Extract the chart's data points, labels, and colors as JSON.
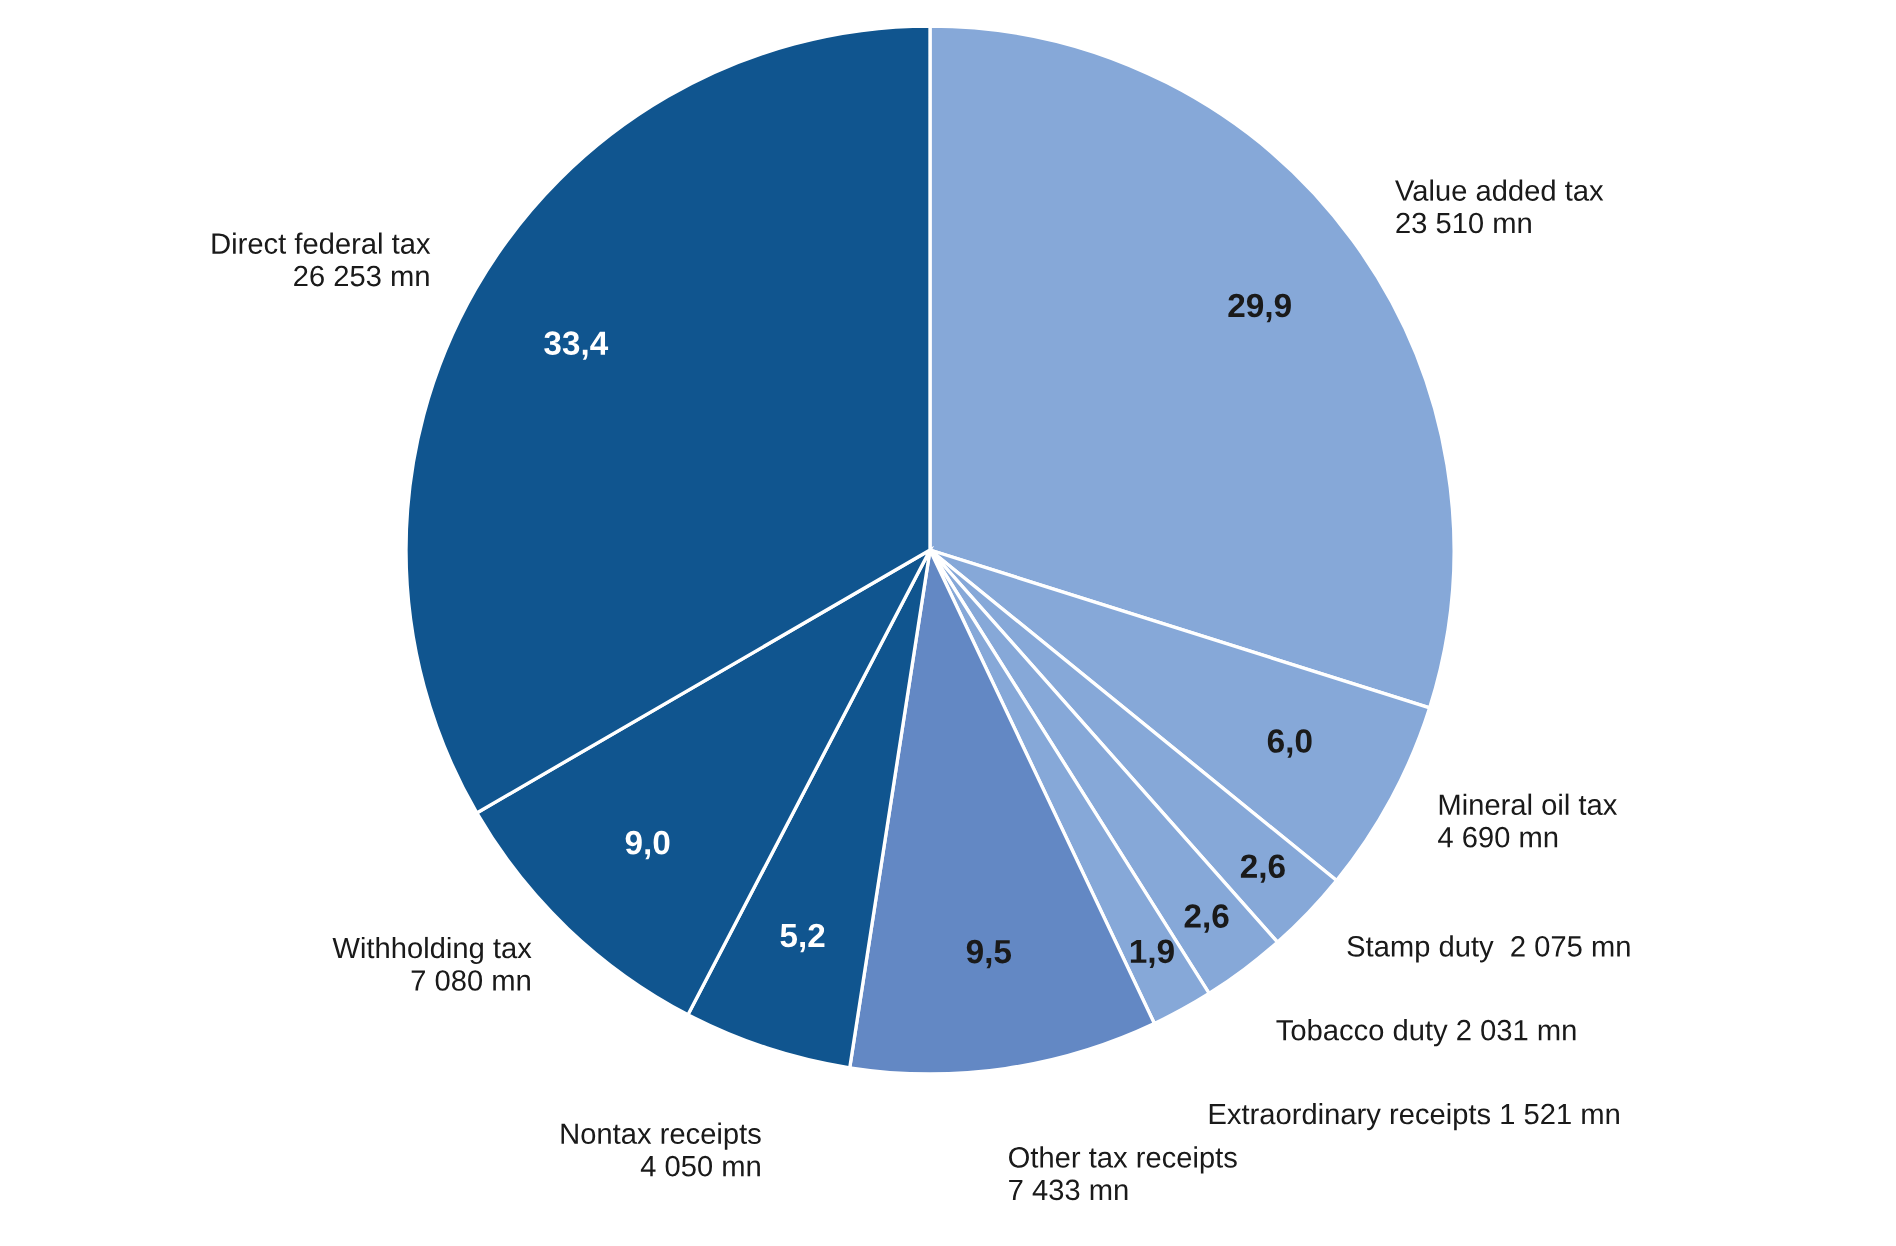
{
  "chart_data": {
    "type": "pie",
    "categories": [
      "Value added tax\n23 510 mn",
      "Mineral oil tax\n4 690 mn",
      "Stamp duty  2 075 mn",
      "Tobacco duty 2 031 mn",
      "Extraordinary receipts 1 521 mn",
      "Other tax receipts\n7 433 mn",
      "Nontax receipts\n4 050 mn",
      "Withholding tax\n7 080 mn",
      "Direct federal tax\n26 253 mn"
    ],
    "values": [
      29.9,
      6.0,
      2.6,
      2.6,
      1.9,
      9.5,
      5.2,
      9.0,
      33.4
    ],
    "value_labels": [
      "29,9",
      "6,0",
      "2,6",
      "2,6",
      "1,9",
      "9,5",
      "5,2",
      "9,0",
      "33,4"
    ],
    "colors": [
      "#86a8d8",
      "#86a8d8",
      "#86a8d8",
      "#86a8d8",
      "#86a8d8",
      "#6388c4",
      "#10558f",
      "#10558f",
      "#10558f"
    ]
  }
}
